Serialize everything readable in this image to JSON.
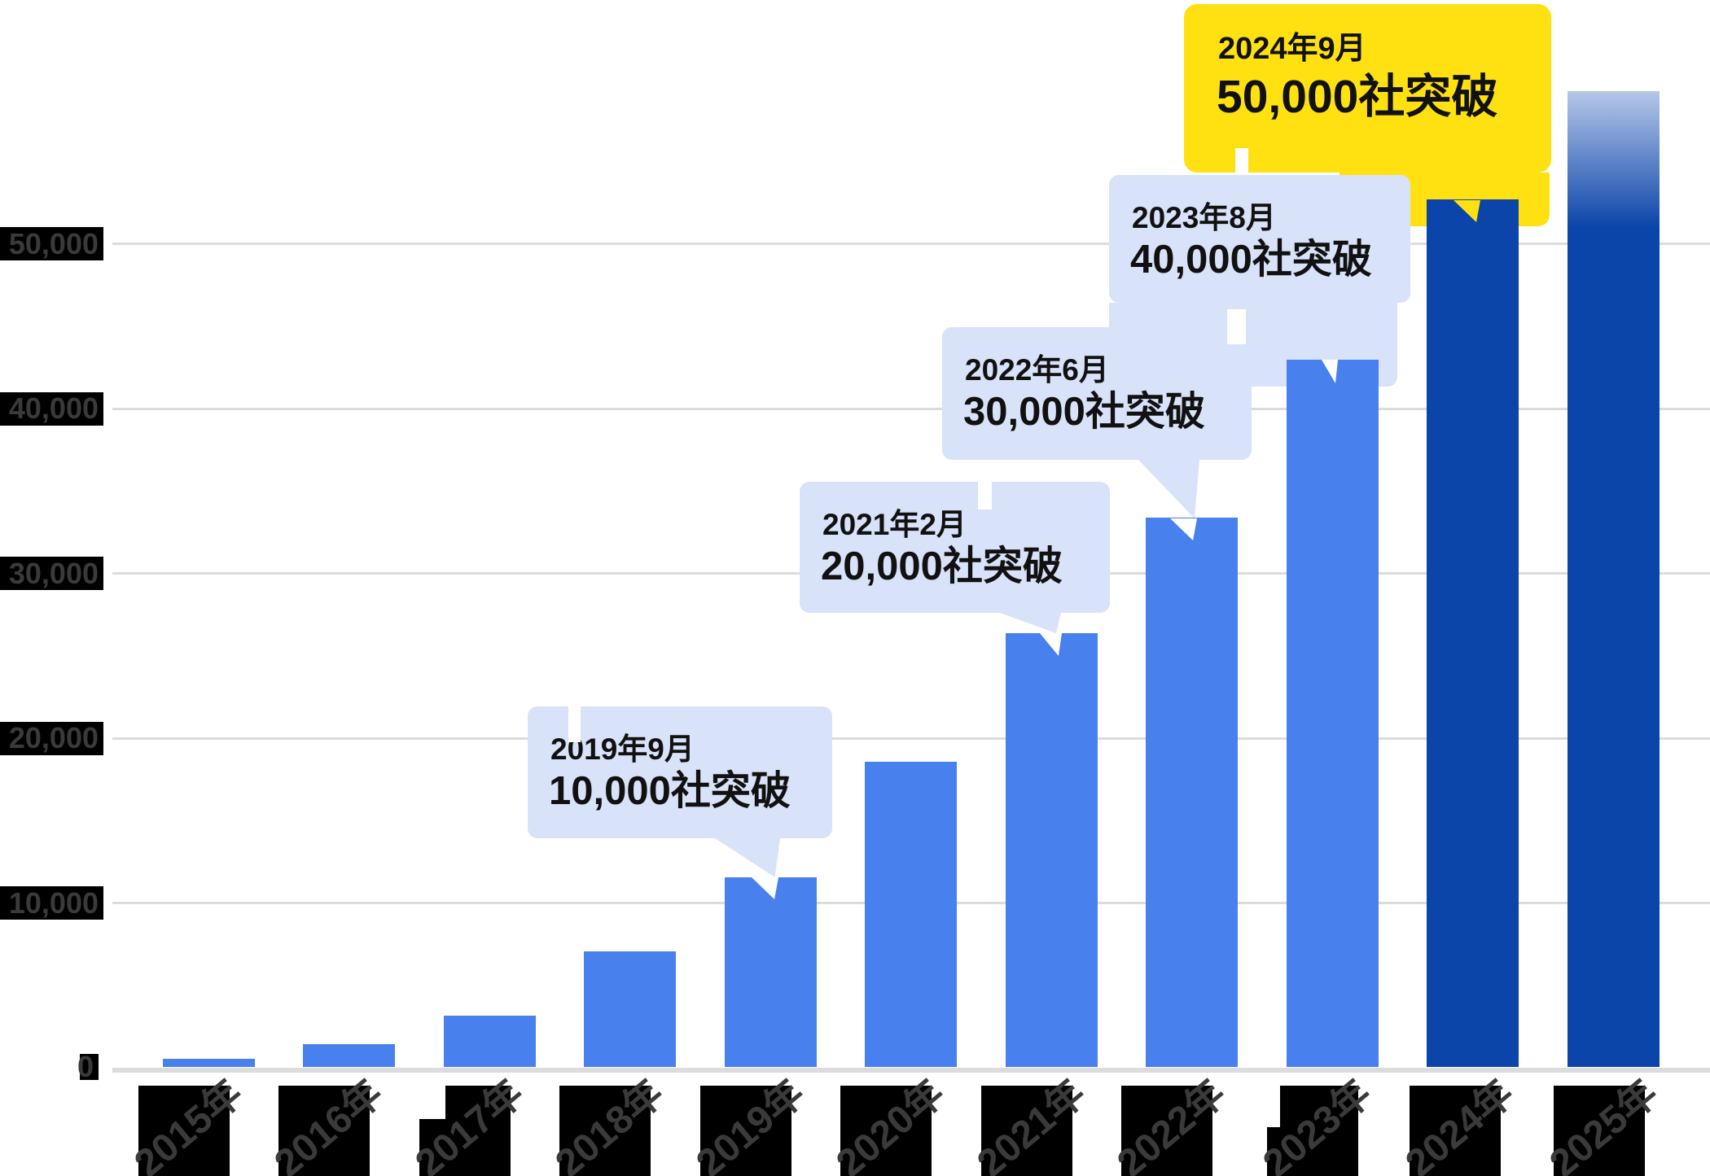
{
  "chart_data": {
    "type": "bar",
    "title": "",
    "categories": [
      "2015年",
      "2016年",
      "2017年",
      "2018年",
      "2019年",
      "2020年",
      "2021年",
      "2022年",
      "2023年",
      "2024年",
      "2025年"
    ],
    "values": [
      500,
      1400,
      3100,
      7000,
      11500,
      18500,
      26300,
      33300,
      42900,
      52600,
      59200
    ],
    "unit": "社",
    "xlabel": "",
    "ylabel": "",
    "ylim": [
      0,
      60000
    ],
    "y_ticks": [
      "0",
      "10,000",
      "20,000",
      "30,000",
      "40,000",
      "50,000"
    ],
    "y_tick_values": [
      0,
      10000,
      20000,
      30000,
      40000,
      50000
    ],
    "grid": "horizontal",
    "legend_position": "none",
    "bar_styles": [
      "blue",
      "blue",
      "blue",
      "blue",
      "blue",
      "blue",
      "blue",
      "blue",
      "blue",
      "navy",
      "navy-fade"
    ],
    "milestones": [
      {
        "date": "2019年9月",
        "label": "10,000社突破",
        "year": "2019年",
        "highlight": false
      },
      {
        "date": "2021年2月",
        "label": "20,000社突破",
        "year": "2021年",
        "highlight": false
      },
      {
        "date": "2022年6月",
        "label": "30,000社突破",
        "year": "2022年",
        "highlight": false
      },
      {
        "date": "2023年8月",
        "label": "40,000社突破",
        "year": "2023年",
        "highlight": false
      },
      {
        "date": "2024年9月",
        "label": "50,000社突破",
        "year": "2024年",
        "highlight": true
      }
    ]
  },
  "colors": {
    "bar_blue": "#4880EE",
    "bar_navy": "#0B45A9",
    "fade_top": "#B5C7E8",
    "callout_bg": "#D8E2F8",
    "highlight_bg": "#FFE011",
    "grid": "#DCDCDC",
    "axis_box": "#000000",
    "axis_text": "#3A3A3A",
    "callout_text": "#111111",
    "background": "#FFFFFF"
  }
}
